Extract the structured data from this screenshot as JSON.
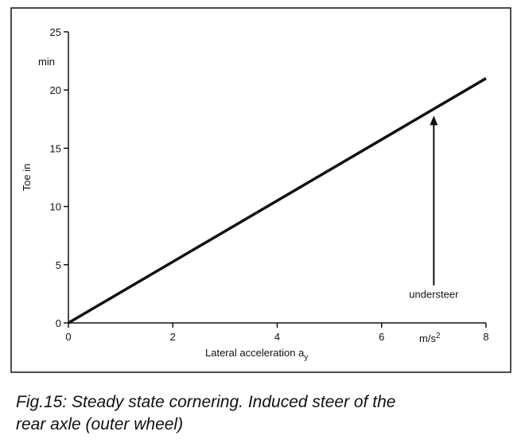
{
  "chart_data": {
    "type": "line",
    "x": [
      0,
      8
    ],
    "series": [
      {
        "name": "Toe in",
        "color": "#111111",
        "values": [
          0,
          21
        ]
      }
    ],
    "xlim": [
      0,
      8
    ],
    "xticks": [
      0,
      2,
      4,
      6,
      8
    ],
    "ylim": [
      0,
      25
    ],
    "yticks": [
      0,
      5,
      10,
      15,
      20,
      25
    ],
    "y_label": "Toe in",
    "y_unit": "min",
    "x_label": "Lateral acceleration a",
    "x_label_sub": "y",
    "x_unit": "m/s",
    "x_unit_sup": "2",
    "annotation": {
      "text": "understeer",
      "x": 7,
      "y_from": 2,
      "y_to": 17.8
    },
    "grid": false
  },
  "caption": [
    "Fig.15: Steady state cornering. Induced steer of the",
    "rear axle (outer wheel)"
  ]
}
